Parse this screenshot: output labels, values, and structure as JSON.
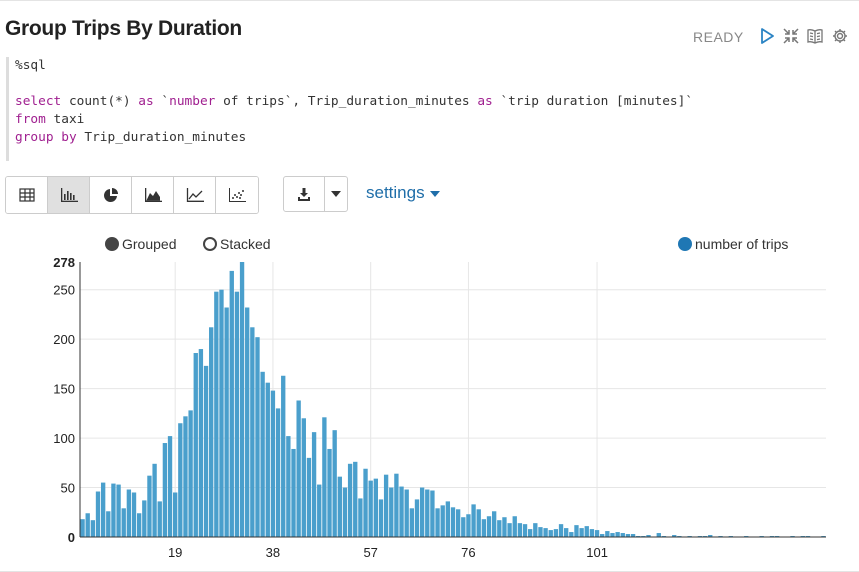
{
  "paragraph": {
    "title": "Group Trips By Duration",
    "status": "READY",
    "icons": [
      "run-icon",
      "collapse-icon",
      "book-icon",
      "gear-icon"
    ]
  },
  "editor": {
    "line1": "%sql",
    "line3_kw1": "select",
    "line3_a": " count(*) ",
    "line3_kw2": "as",
    "line3_b": " `",
    "line3_kw3": "number",
    "line3_c": " of trips`, Trip_duration_minutes ",
    "line3_kw4": "as",
    "line3_d": " `trip duration [minutes]`",
    "line4_kw": "from",
    "line4_rest": " taxi",
    "line5_kw1": "group",
    "line5_sp": " ",
    "line5_kw2": "by",
    "line5_rest": " Trip_duration_minutes"
  },
  "toolbar": {
    "viz_buttons": [
      "table-icon",
      "bar-chart-icon",
      "pie-chart-icon",
      "area-chart-icon",
      "line-chart-icon",
      "scatter-chart-icon"
    ],
    "active_viz": "bar-chart-icon",
    "download_icon": "download-icon",
    "settings_label": "settings"
  },
  "controls": {
    "grouped_label": "Grouped",
    "stacked_label": "Stacked",
    "selected": "Grouped"
  },
  "colors": {
    "bar": "#4a9fcc",
    "bar_edge": "#3e8fbc",
    "legend": "#1f77b4",
    "grid": "#e6e6e6"
  },
  "chart_data": {
    "type": "bar",
    "title": "",
    "xlabel": "",
    "ylabel": "",
    "legend": "top-right",
    "series": [
      {
        "name": "number of trips",
        "x_start": 1,
        "values": [
          18,
          24,
          17,
          46,
          55,
          26,
          54,
          53,
          29,
          48,
          45,
          24,
          37,
          62,
          74,
          36,
          95,
          102,
          45,
          115,
          122,
          128,
          186,
          190,
          173,
          212,
          248,
          250,
          232,
          269,
          248,
          278,
          232,
          212,
          202,
          167,
          156,
          148,
          130,
          163,
          102,
          89,
          138,
          120,
          80,
          106,
          53,
          121,
          89,
          108,
          61,
          50,
          74,
          76,
          39,
          69,
          57,
          59,
          38,
          63,
          50,
          64,
          51,
          48,
          29,
          38,
          50,
          48,
          47,
          29,
          32,
          36,
          30,
          28,
          20,
          23,
          33,
          28,
          18,
          21,
          26,
          17,
          20,
          14,
          21,
          14,
          13,
          8,
          14,
          10,
          9,
          7,
          8,
          13,
          9,
          5,
          12,
          9,
          11,
          8,
          7,
          3,
          6,
          4,
          5,
          4,
          3,
          3,
          1,
          1,
          2,
          0,
          4,
          1,
          0,
          2,
          1,
          0,
          1,
          0,
          1,
          1,
          2,
          0,
          1,
          0,
          1,
          0,
          0,
          1,
          0,
          0,
          1,
          0,
          1,
          1,
          0,
          0,
          1,
          0,
          1,
          1,
          0,
          0,
          1
        ]
      }
    ],
    "x_ticks": [
      "19",
      "38",
      "57",
      "76",
      "101"
    ],
    "y_ticks": [
      "0",
      "50",
      "100",
      "150",
      "200",
      "250",
      "278"
    ],
    "ylim": [
      0,
      278
    ],
    "grid": true
  }
}
